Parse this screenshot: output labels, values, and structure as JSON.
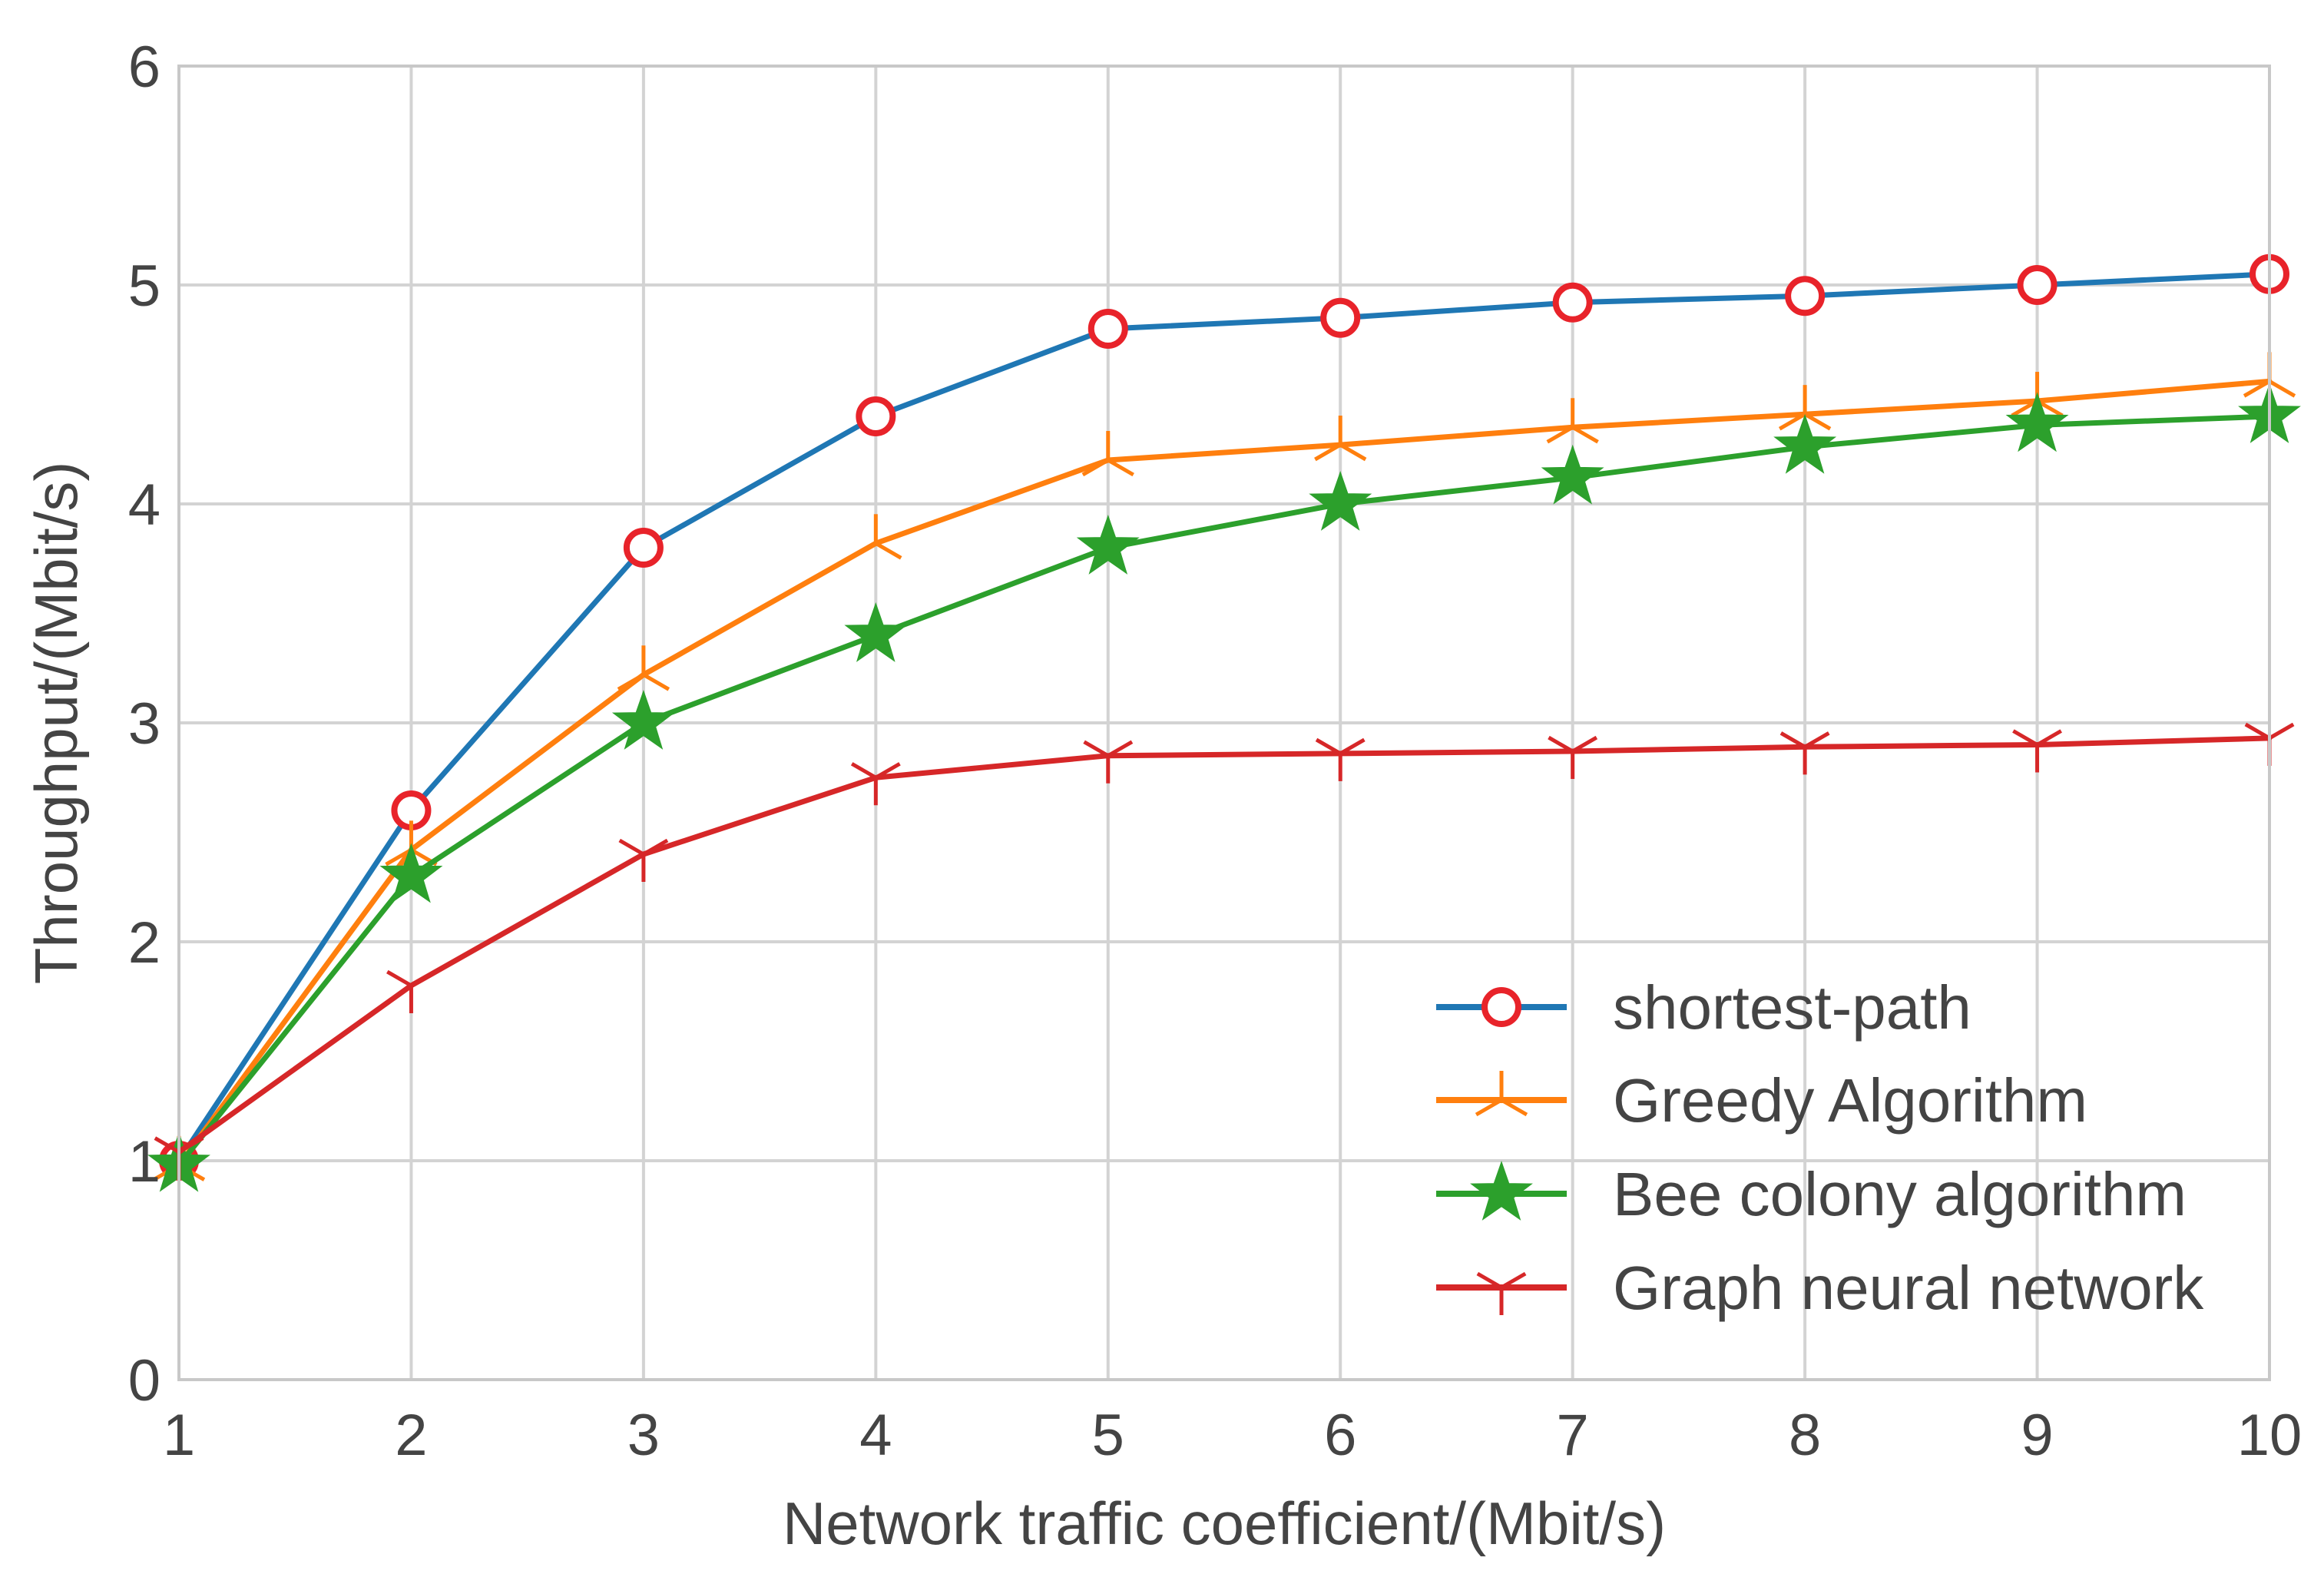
{
  "chart_data": {
    "type": "line",
    "title": "",
    "xlabel": "Network traffic coefficient/(Mbit/s)",
    "ylabel": "Throughput/(Mbit/s)",
    "xlim": [
      1,
      10
    ],
    "ylim": [
      0,
      6
    ],
    "grid": true,
    "legend_position": "bottom-right",
    "x": [
      1,
      2,
      3,
      4,
      5,
      6,
      7,
      8,
      9,
      10
    ],
    "x_tick_labels": [
      "1",
      "2",
      "3",
      "4",
      "5",
      "6",
      "7",
      "8",
      "9",
      "10"
    ],
    "y_tick_labels": [
      "0",
      "1",
      "2",
      "3",
      "4",
      "5",
      "6"
    ],
    "series": [
      {
        "name": "shortest-path",
        "color": "#1f77b4",
        "marker": "circle",
        "marker_color": "#e8232a",
        "values": [
          1.0,
          2.6,
          3.8,
          4.4,
          4.8,
          4.85,
          4.92,
          4.95,
          5.0,
          5.05
        ]
      },
      {
        "name": "Greedy Algorithm",
        "color": "#ff7f0e",
        "marker": "tri-star",
        "values": [
          0.98,
          2.42,
          3.22,
          3.82,
          4.2,
          4.27,
          4.35,
          4.41,
          4.47,
          4.56
        ]
      },
      {
        "name": "Bee colony algorithm",
        "color": "#2ca02c",
        "marker": "star",
        "values": [
          0.98,
          2.3,
          3.0,
          3.4,
          3.8,
          4.0,
          4.12,
          4.26,
          4.36,
          4.4
        ]
      },
      {
        "name": "Graph neural network",
        "color": "#d62728",
        "marker": "tri-down",
        "values": [
          1.04,
          1.8,
          2.4,
          2.75,
          2.85,
          2.86,
          2.87,
          2.89,
          2.9,
          2.93
        ]
      }
    ]
  }
}
